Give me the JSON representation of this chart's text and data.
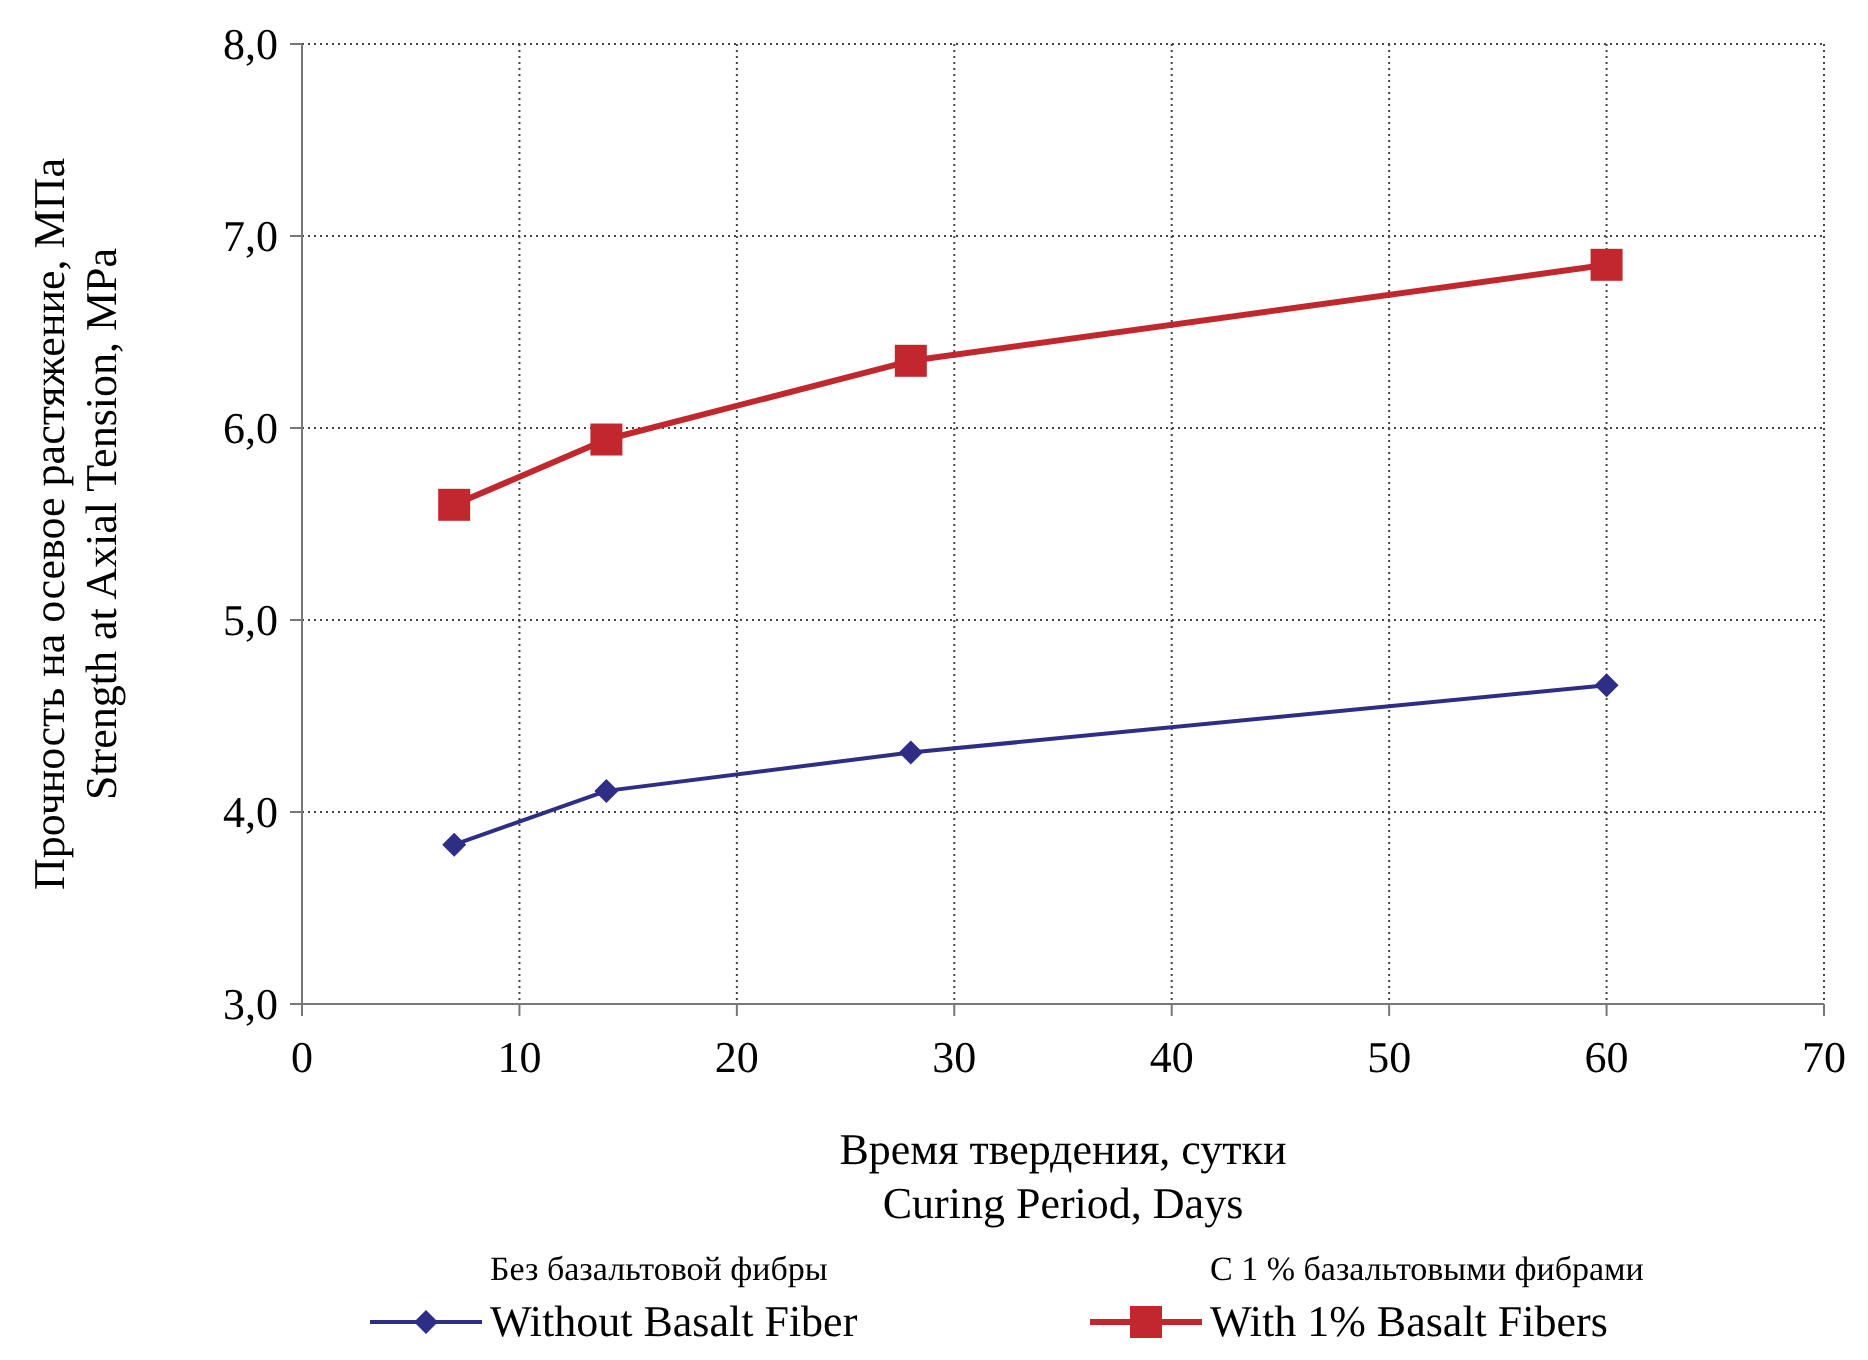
{
  "chart_data": {
    "type": "line",
    "xlabel": "Время твердения, сутки\nCuring Period, Days",
    "ylabel": "Прочность на осевое растяжение, МПа\nStrength at Axial Tension, MPa",
    "x": [
      7,
      14,
      28,
      60
    ],
    "series": [
      {
        "name": "Без базальтовой фибры\nWithout Basalt Fiber",
        "color": "#2e2e86",
        "values": [
          3.83,
          4.11,
          4.31,
          4.66
        ],
        "marker": "diamond"
      },
      {
        "name": "С 1 % базальтовыми фибрами\nWith 1% Basalt Fibers",
        "color": "#c0282d",
        "values": [
          5.6,
          5.94,
          6.35,
          6.85
        ],
        "marker": "square"
      }
    ],
    "xlim": [
      0,
      70
    ],
    "xticks": [
      0,
      10,
      20,
      30,
      40,
      50,
      60,
      70
    ],
    "ylim": [
      3,
      8
    ],
    "yticks": [
      {
        "value": 3,
        "label": "3,0"
      },
      {
        "value": 4,
        "label": "4,0"
      },
      {
        "value": 5,
        "label": "5,0"
      },
      {
        "value": 6,
        "label": "6,0"
      },
      {
        "value": 7,
        "label": "7,0"
      },
      {
        "value": 8,
        "label": "8,0"
      }
    ],
    "grid": true,
    "legend": "bottom",
    "line_style": "solid"
  }
}
